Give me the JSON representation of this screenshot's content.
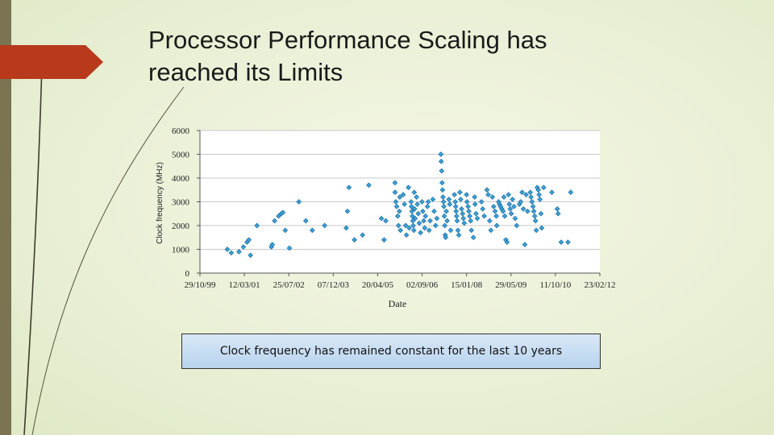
{
  "slide": {
    "title": "Processor Performance Scaling has reached its Limits",
    "callout": "Clock frequency has remained constant for the last 10 years"
  },
  "colors": {
    "accent_red": "#b8391c",
    "side_bar": "#7a7452",
    "marker_fill": "#3fa0d8",
    "marker_stroke": "#2276a8"
  },
  "chart_data": {
    "type": "scatter",
    "title": "",
    "xlabel": "Date",
    "ylabel": "Clock frequency (MHz)",
    "ylim": [
      0,
      6000
    ],
    "yticks": [
      "0",
      "1000",
      "2000",
      "3000",
      "4000",
      "5000",
      "6000"
    ],
    "xlim": [
      "1999-10-29",
      "2012-02-23"
    ],
    "xticks": [
      "29/10/99",
      "12/03/01",
      "25/07/02",
      "07/12/03",
      "20/04/05",
      "02/09/06",
      "15/01/08",
      "29/05/09",
      "11/10/10",
      "23/02/12"
    ],
    "grid": "horizontal",
    "series": [
      {
        "points": [
          [
            "2000-09-01",
            1000
          ],
          [
            "2000-10-15",
            850
          ],
          [
            "2001-01-10",
            900
          ],
          [
            "2001-03-01",
            1100
          ],
          [
            "2001-04-10",
            1300
          ],
          [
            "2001-05-01",
            1400
          ],
          [
            "2001-05-20",
            750
          ],
          [
            "2001-08-01",
            2000
          ],
          [
            "2002-01-10",
            1100
          ],
          [
            "2002-01-20",
            1200
          ],
          [
            "2002-02-15",
            2200
          ],
          [
            "2002-04-01",
            2400
          ],
          [
            "2002-05-01",
            2500
          ],
          [
            "2002-05-20",
            2550
          ],
          [
            "2002-06-15",
            1800
          ],
          [
            "2002-08-01",
            1050
          ],
          [
            "2002-11-15",
            3000
          ],
          [
            "2003-02-01",
            2200
          ],
          [
            "2003-04-15",
            1800
          ],
          [
            "2003-09-01",
            2000
          ],
          [
            "2004-05-01",
            1900
          ],
          [
            "2004-05-15",
            2600
          ],
          [
            "2004-06-01",
            3600
          ],
          [
            "2004-08-01",
            1400
          ],
          [
            "2004-11-01",
            1600
          ],
          [
            "2005-01-10",
            3700
          ],
          [
            "2005-06-01",
            2300
          ],
          [
            "2005-07-01",
            1400
          ],
          [
            "2005-07-20",
            2200
          ],
          [
            "2005-11-01",
            3800
          ],
          [
            "2005-11-01",
            3400
          ],
          [
            "2005-11-10",
            3000
          ],
          [
            "2005-11-20",
            2800
          ],
          [
            "2005-12-01",
            2400
          ],
          [
            "2005-12-10",
            2000
          ],
          [
            "2005-12-20",
            2600
          ],
          [
            "2005-12-25",
            3200
          ],
          [
            "2006-01-01",
            1800
          ],
          [
            "2006-02-01",
            3300
          ],
          [
            "2006-02-15",
            2900
          ],
          [
            "2006-03-01",
            2000
          ],
          [
            "2006-03-10",
            1600
          ],
          [
            "2006-04-01",
            3600
          ],
          [
            "2006-04-10",
            1900
          ],
          [
            "2006-05-01",
            3000
          ],
          [
            "2006-05-05",
            2800
          ],
          [
            "2006-05-10",
            2600
          ],
          [
            "2006-05-15",
            2400
          ],
          [
            "2006-05-20",
            2200
          ],
          [
            "2006-05-25",
            2000
          ],
          [
            "2006-06-01",
            1800
          ],
          [
            "2006-06-05",
            3400
          ],
          [
            "2006-06-10",
            2700
          ],
          [
            "2006-06-15",
            2300
          ],
          [
            "2006-07-01",
            3200
          ],
          [
            "2006-07-10",
            2900
          ],
          [
            "2006-07-20",
            2500
          ],
          [
            "2006-08-01",
            2100
          ],
          [
            "2006-08-15",
            1700
          ],
          [
            "2006-09-01",
            3000
          ],
          [
            "2006-09-10",
            2600
          ],
          [
            "2006-09-20",
            2200
          ],
          [
            "2006-10-01",
            1900
          ],
          [
            "2006-10-10",
            2400
          ],
          [
            "2006-11-01",
            2800
          ],
          [
            "2006-11-10",
            3000
          ],
          [
            "2006-11-20",
            1800
          ],
          [
            "2006-12-01",
            2200
          ],
          [
            "2007-01-01",
            3100
          ],
          [
            "2007-01-15",
            2600
          ],
          [
            "2007-02-01",
            2000
          ],
          [
            "2007-02-15",
            2300
          ],
          [
            "2007-04-01",
            5000
          ],
          [
            "2007-04-05",
            4700
          ],
          [
            "2007-04-10",
            4300
          ],
          [
            "2007-04-15",
            3800
          ],
          [
            "2007-04-20",
            3500
          ],
          [
            "2007-04-25",
            3200
          ],
          [
            "2007-05-01",
            3000
          ],
          [
            "2007-05-05",
            2800
          ],
          [
            "2007-05-10",
            2400
          ],
          [
            "2007-05-15",
            2000
          ],
          [
            "2007-05-20",
            1600
          ],
          [
            "2007-05-25",
            1500
          ],
          [
            "2007-06-01",
            2600
          ],
          [
            "2007-06-10",
            2200
          ],
          [
            "2007-07-01",
            3100
          ],
          [
            "2007-07-10",
            2900
          ],
          [
            "2007-07-20",
            1800
          ],
          [
            "2007-09-01",
            3300
          ],
          [
            "2007-09-10",
            3000
          ],
          [
            "2007-09-15",
            2800
          ],
          [
            "2007-09-20",
            2600
          ],
          [
            "2007-09-25",
            2400
          ],
          [
            "2007-10-01",
            2200
          ],
          [
            "2007-10-10",
            1800
          ],
          [
            "2007-10-20",
            1600
          ],
          [
            "2007-11-01",
            3400
          ],
          [
            "2007-11-10",
            3100
          ],
          [
            "2007-11-20",
            2700
          ],
          [
            "2007-12-01",
            2500
          ],
          [
            "2007-12-10",
            2300
          ],
          [
            "2007-12-20",
            2100
          ],
          [
            "2008-01-15",
            3300
          ],
          [
            "2008-01-20",
            3000
          ],
          [
            "2008-02-01",
            2800
          ],
          [
            "2008-02-10",
            2600
          ],
          [
            "2008-02-20",
            2400
          ],
          [
            "2008-03-01",
            2200
          ],
          [
            "2008-03-10",
            1800
          ],
          [
            "2008-04-01",
            1500
          ],
          [
            "2008-04-15",
            3200
          ],
          [
            "2008-04-20",
            2900
          ],
          [
            "2008-05-01",
            2500
          ],
          [
            "2008-05-15",
            2300
          ],
          [
            "2008-07-01",
            3000
          ],
          [
            "2008-07-15",
            2700
          ],
          [
            "2008-08-01",
            2400
          ],
          [
            "2008-09-01",
            3500
          ],
          [
            "2008-09-15",
            3300
          ],
          [
            "2008-10-01",
            2200
          ],
          [
            "2008-10-15",
            1800
          ],
          [
            "2008-11-01",
            3200
          ],
          [
            "2008-11-15",
            2800
          ],
          [
            "2008-12-01",
            2600
          ],
          [
            "2008-12-15",
            2400
          ],
          [
            "2008-12-20",
            2000
          ],
          [
            "2009-01-10",
            3000
          ],
          [
            "2009-01-20",
            2900
          ],
          [
            "2009-02-01",
            2800
          ],
          [
            "2009-02-15",
            2700
          ],
          [
            "2009-03-01",
            2600
          ],
          [
            "2009-03-10",
            3200
          ],
          [
            "2009-03-20",
            2400
          ],
          [
            "2009-04-01",
            1400
          ],
          [
            "2009-04-15",
            1300
          ],
          [
            "2009-05-01",
            3300
          ],
          [
            "2009-05-10",
            2900
          ],
          [
            "2009-05-20",
            2700
          ],
          [
            "2009-06-01",
            2500
          ],
          [
            "2009-06-15",
            3100
          ],
          [
            "2009-07-01",
            2800
          ],
          [
            "2009-07-15",
            2300
          ],
          [
            "2009-08-01",
            2000
          ],
          [
            "2009-09-01",
            2900
          ],
          [
            "2009-09-15",
            3000
          ],
          [
            "2009-10-01",
            3400
          ],
          [
            "2009-10-15",
            2700
          ],
          [
            "2009-11-01",
            1200
          ],
          [
            "2009-11-15",
            3300
          ],
          [
            "2009-12-01",
            2600
          ],
          [
            "2010-01-01",
            3400
          ],
          [
            "2010-01-10",
            3200
          ],
          [
            "2010-01-20",
            3000
          ],
          [
            "2010-02-01",
            2800
          ],
          [
            "2010-02-10",
            2600
          ],
          [
            "2010-02-20",
            2400
          ],
          [
            "2010-03-01",
            2200
          ],
          [
            "2010-03-10",
            1800
          ],
          [
            "2010-03-20",
            3600
          ],
          [
            "2010-04-01",
            3500
          ],
          [
            "2010-04-10",
            3300
          ],
          [
            "2010-04-20",
            3100
          ],
          [
            "2010-05-01",
            2500
          ],
          [
            "2010-05-10",
            1900
          ],
          [
            "2010-06-01",
            3600
          ],
          [
            "2010-09-01",
            3400
          ],
          [
            "2010-11-01",
            2700
          ],
          [
            "2010-11-10",
            2500
          ],
          [
            "2010-12-15",
            1300
          ],
          [
            "2011-03-01",
            1300
          ],
          [
            "2011-04-01",
            3400
          ]
        ]
      }
    ]
  }
}
